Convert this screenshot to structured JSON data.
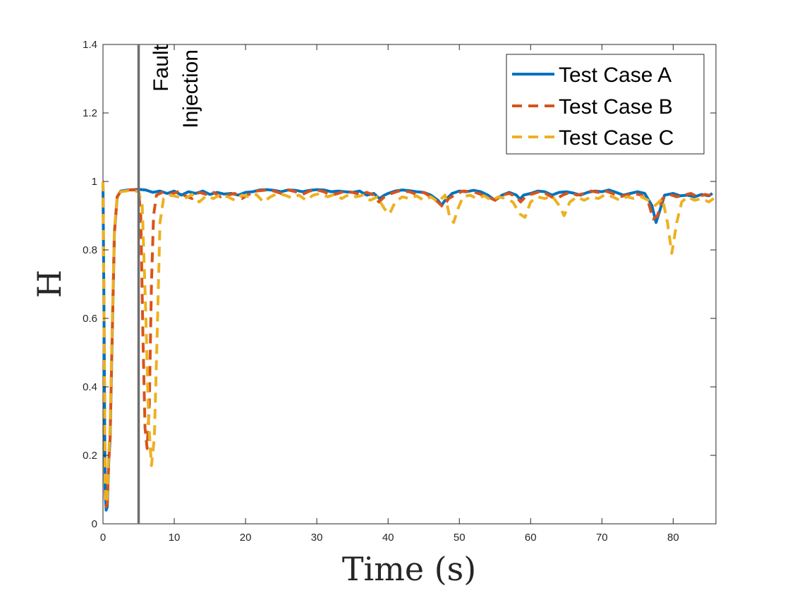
{
  "chart_data": {
    "type": "line",
    "title": "",
    "xlabel": "Time (s)",
    "ylabel": "H",
    "xlim": [
      0,
      86
    ],
    "ylim": [
      0,
      1.4
    ],
    "xticks": [
      0,
      10,
      20,
      30,
      40,
      50,
      60,
      70,
      80
    ],
    "yticks": [
      0,
      0.2,
      0.4,
      0.6,
      0.8,
      1,
      1.2,
      1.4
    ],
    "xtick_labels": [
      "0",
      "10",
      "20",
      "30",
      "40",
      "50",
      "60",
      "70",
      "80"
    ],
    "ytick_labels": [
      "0",
      "0.2",
      "0.4",
      "0.6",
      "0.8",
      "1",
      "1.2",
      "1.4"
    ],
    "grid": false,
    "legend_position": "top-right",
    "annotation": {
      "text_line1": "Fault",
      "text_line2": "Injection",
      "x": 5
    },
    "colors": {
      "axis": "#262626",
      "fault_line": "#6e6e6e"
    },
    "series": [
      {
        "name": "Test Case A",
        "style": "solid",
        "color": "#0072BD",
        "points": [
          [
            0,
            1.0
          ],
          [
            0.15,
            0.6
          ],
          [
            0.3,
            0.1
          ],
          [
            0.45,
            0.04
          ],
          [
            0.6,
            0.05
          ],
          [
            0.8,
            0.18
          ],
          [
            1.0,
            0.25
          ],
          [
            1.3,
            0.55
          ],
          [
            1.6,
            0.85
          ],
          [
            2.0,
            0.955
          ],
          [
            2.5,
            0.972
          ],
          [
            3.5,
            0.975
          ],
          [
            5,
            0.977
          ],
          [
            6,
            0.975
          ],
          [
            7,
            0.968
          ],
          [
            8,
            0.972
          ],
          [
            9,
            0.965
          ],
          [
            10,
            0.972
          ],
          [
            11,
            0.96
          ],
          [
            12,
            0.97
          ],
          [
            13,
            0.965
          ],
          [
            14,
            0.972
          ],
          [
            15,
            0.962
          ],
          [
            16,
            0.968
          ],
          [
            17,
            0.963
          ],
          [
            18,
            0.965
          ],
          [
            19,
            0.96
          ],
          [
            20,
            0.968
          ],
          [
            21,
            0.97
          ],
          [
            22,
            0.975
          ],
          [
            23,
            0.976
          ],
          [
            24,
            0.974
          ],
          [
            25,
            0.97
          ],
          [
            26,
            0.975
          ],
          [
            27,
            0.974
          ],
          [
            28,
            0.97
          ],
          [
            29,
            0.974
          ],
          [
            30,
            0.976
          ],
          [
            31,
            0.975
          ],
          [
            32,
            0.97
          ],
          [
            33,
            0.972
          ],
          [
            34,
            0.97
          ],
          [
            35,
            0.968
          ],
          [
            36,
            0.972
          ],
          [
            37,
            0.96
          ],
          [
            38,
            0.965
          ],
          [
            38.8,
            0.95
          ],
          [
            39.5,
            0.96
          ],
          [
            40,
            0.965
          ],
          [
            41,
            0.972
          ],
          [
            42,
            0.975
          ],
          [
            43,
            0.973
          ],
          [
            44,
            0.97
          ],
          [
            45,
            0.968
          ],
          [
            46,
            0.96
          ],
          [
            47,
            0.945
          ],
          [
            47.5,
            0.93
          ],
          [
            48,
            0.945
          ],
          [
            49,
            0.965
          ],
          [
            50,
            0.972
          ],
          [
            51,
            0.97
          ],
          [
            52,
            0.974
          ],
          [
            53,
            0.97
          ],
          [
            54,
            0.96
          ],
          [
            55,
            0.945
          ],
          [
            56,
            0.96
          ],
          [
            57,
            0.968
          ],
          [
            58,
            0.96
          ],
          [
            58.5,
            0.948
          ],
          [
            59,
            0.96
          ],
          [
            60,
            0.965
          ],
          [
            61,
            0.972
          ],
          [
            62,
            0.97
          ],
          [
            63,
            0.96
          ],
          [
            64,
            0.968
          ],
          [
            65,
            0.97
          ],
          [
            66,
            0.966
          ],
          [
            67,
            0.96
          ],
          [
            68,
            0.968
          ],
          [
            69,
            0.972
          ],
          [
            70,
            0.97
          ],
          [
            71,
            0.975
          ],
          [
            72,
            0.968
          ],
          [
            73,
            0.96
          ],
          [
            74,
            0.965
          ],
          [
            75,
            0.97
          ],
          [
            76,
            0.965
          ],
          [
            77,
            0.93
          ],
          [
            77.6,
            0.88
          ],
          [
            78.2,
            0.92
          ],
          [
            78.8,
            0.96
          ],
          [
            80,
            0.965
          ],
          [
            81,
            0.958
          ],
          [
            82,
            0.96
          ],
          [
            83,
            0.955
          ],
          [
            84,
            0.962
          ],
          [
            85,
            0.958
          ],
          [
            85.5,
            0.965
          ]
        ]
      },
      {
        "name": "Test Case B",
        "style": "dashed",
        "color": "#D95319",
        "points": [
          [
            0,
            1.0
          ],
          [
            0.15,
            0.6
          ],
          [
            0.3,
            0.1
          ],
          [
            0.45,
            0.05
          ],
          [
            0.6,
            0.06
          ],
          [
            0.8,
            0.18
          ],
          [
            1.0,
            0.25
          ],
          [
            1.3,
            0.55
          ],
          [
            1.6,
            0.85
          ],
          [
            2.0,
            0.955
          ],
          [
            2.5,
            0.972
          ],
          [
            3.5,
            0.975
          ],
          [
            4.5,
            0.975
          ],
          [
            5.0,
            0.97
          ],
          [
            5.3,
            0.9
          ],
          [
            5.6,
            0.55
          ],
          [
            5.9,
            0.28
          ],
          [
            6.2,
            0.22
          ],
          [
            6.5,
            0.35
          ],
          [
            6.8,
            0.7
          ],
          [
            7.1,
            0.9
          ],
          [
            7.5,
            0.96
          ],
          [
            8.5,
            0.97
          ],
          [
            9.5,
            0.962
          ],
          [
            10.5,
            0.97
          ],
          [
            11.5,
            0.958
          ],
          [
            12.5,
            0.95
          ],
          [
            13.5,
            0.968
          ],
          [
            14.5,
            0.962
          ],
          [
            15.5,
            0.968
          ],
          [
            16.5,
            0.955
          ],
          [
            17.5,
            0.96
          ],
          [
            18.5,
            0.965
          ],
          [
            19.5,
            0.95
          ],
          [
            20.5,
            0.962
          ],
          [
            21.5,
            0.972
          ],
          [
            23,
            0.975
          ],
          [
            24,
            0.972
          ],
          [
            25,
            0.965
          ],
          [
            26,
            0.975
          ],
          [
            27,
            0.97
          ],
          [
            28,
            0.962
          ],
          [
            29,
            0.972
          ],
          [
            30,
            0.975
          ],
          [
            31,
            0.97
          ],
          [
            32,
            0.96
          ],
          [
            33,
            0.965
          ],
          [
            34,
            0.972
          ],
          [
            35,
            0.968
          ],
          [
            36,
            0.962
          ],
          [
            37,
            0.968
          ],
          [
            38,
            0.96
          ],
          [
            38.7,
            0.94
          ],
          [
            39.5,
            0.955
          ],
          [
            40.5,
            0.965
          ],
          [
            41.5,
            0.972
          ],
          [
            43,
            0.97
          ],
          [
            44,
            0.962
          ],
          [
            45,
            0.968
          ],
          [
            46,
            0.955
          ],
          [
            47,
            0.94
          ],
          [
            47.7,
            0.925
          ],
          [
            48.5,
            0.95
          ],
          [
            49.5,
            0.962
          ],
          [
            50.5,
            0.972
          ],
          [
            52,
            0.97
          ],
          [
            53,
            0.962
          ],
          [
            54,
            0.955
          ],
          [
            55,
            0.945
          ],
          [
            56,
            0.96
          ],
          [
            57,
            0.965
          ],
          [
            58,
            0.955
          ],
          [
            58.6,
            0.94
          ],
          [
            59.5,
            0.96
          ],
          [
            60.5,
            0.965
          ],
          [
            61.5,
            0.972
          ],
          [
            62.5,
            0.96
          ],
          [
            63.5,
            0.948
          ],
          [
            64.5,
            0.96
          ],
          [
            65.5,
            0.968
          ],
          [
            66.5,
            0.96
          ],
          [
            67.5,
            0.965
          ],
          [
            68.5,
            0.972
          ],
          [
            69.5,
            0.968
          ],
          [
            70.5,
            0.972
          ],
          [
            71.5,
            0.965
          ],
          [
            72.5,
            0.955
          ],
          [
            73.5,
            0.96
          ],
          [
            74.5,
            0.965
          ],
          [
            75.5,
            0.96
          ],
          [
            76.5,
            0.94
          ],
          [
            77.2,
            0.89
          ],
          [
            77.8,
            0.9
          ],
          [
            78.5,
            0.95
          ],
          [
            79.5,
            0.962
          ],
          [
            80.5,
            0.955
          ],
          [
            81.5,
            0.96
          ],
          [
            82.5,
            0.965
          ],
          [
            83.5,
            0.955
          ],
          [
            84.5,
            0.962
          ],
          [
            85.5,
            0.958
          ]
        ]
      },
      {
        "name": "Test Case C",
        "style": "dashed",
        "color": "#EDB120",
        "points": [
          [
            0,
            1.0
          ],
          [
            0.15,
            0.62
          ],
          [
            0.3,
            0.12
          ],
          [
            0.45,
            0.06
          ],
          [
            0.6,
            0.08
          ],
          [
            0.8,
            0.2
          ],
          [
            1.0,
            0.28
          ],
          [
            1.3,
            0.58
          ],
          [
            1.6,
            0.86
          ],
          [
            2.0,
            0.955
          ],
          [
            2.5,
            0.97
          ],
          [
            3.5,
            0.973
          ],
          [
            4.5,
            0.972
          ],
          [
            5.0,
            0.97
          ],
          [
            5.5,
            0.93
          ],
          [
            6.0,
            0.62
          ],
          [
            6.4,
            0.3
          ],
          [
            6.8,
            0.17
          ],
          [
            7.2,
            0.25
          ],
          [
            7.6,
            0.55
          ],
          [
            8.0,
            0.88
          ],
          [
            8.5,
            0.95
          ],
          [
            9.5,
            0.96
          ],
          [
            10.5,
            0.955
          ],
          [
            11.5,
            0.95
          ],
          [
            12.5,
            0.962
          ],
          [
            13.5,
            0.94
          ],
          [
            14.5,
            0.958
          ],
          [
            15.5,
            0.95
          ],
          [
            16.5,
            0.962
          ],
          [
            17.5,
            0.955
          ],
          [
            18.5,
            0.945
          ],
          [
            19.5,
            0.96
          ],
          [
            20.5,
            0.955
          ],
          [
            21.5,
            0.962
          ],
          [
            22.5,
            0.94
          ],
          [
            23.5,
            0.955
          ],
          [
            24.5,
            0.965
          ],
          [
            25.5,
            0.96
          ],
          [
            26.5,
            0.952
          ],
          [
            27.5,
            0.96
          ],
          [
            28.5,
            0.945
          ],
          [
            29.5,
            0.96
          ],
          [
            30.5,
            0.965
          ],
          [
            31.5,
            0.955
          ],
          [
            32.5,
            0.962
          ],
          [
            33.5,
            0.95
          ],
          [
            34.5,
            0.962
          ],
          [
            35.5,
            0.955
          ],
          [
            36.5,
            0.96
          ],
          [
            37.5,
            0.945
          ],
          [
            38.5,
            0.955
          ],
          [
            39.5,
            0.92
          ],
          [
            40.2,
            0.905
          ],
          [
            41,
            0.94
          ],
          [
            42,
            0.955
          ],
          [
            43,
            0.95
          ],
          [
            44,
            0.958
          ],
          [
            45,
            0.945
          ],
          [
            46,
            0.955
          ],
          [
            47,
            0.94
          ],
          [
            48,
            0.96
          ],
          [
            48.6,
            0.9
          ],
          [
            49.2,
            0.88
          ],
          [
            49.8,
            0.92
          ],
          [
            50.5,
            0.955
          ],
          [
            51.5,
            0.96
          ],
          [
            52.5,
            0.95
          ],
          [
            53.5,
            0.958
          ],
          [
            54.5,
            0.945
          ],
          [
            55.5,
            0.955
          ],
          [
            56.5,
            0.95
          ],
          [
            57.5,
            0.94
          ],
          [
            58.5,
            0.905
          ],
          [
            59.2,
            0.895
          ],
          [
            60,
            0.94
          ],
          [
            61,
            0.955
          ],
          [
            62,
            0.95
          ],
          [
            63,
            0.958
          ],
          [
            64,
            0.93
          ],
          [
            64.7,
            0.9
          ],
          [
            65.5,
            0.94
          ],
          [
            66.5,
            0.955
          ],
          [
            67.5,
            0.945
          ],
          [
            68.5,
            0.955
          ],
          [
            69.5,
            0.95
          ],
          [
            70.5,
            0.962
          ],
          [
            71.5,
            0.955
          ],
          [
            72.5,
            0.945
          ],
          [
            73.5,
            0.955
          ],
          [
            74.5,
            0.95
          ],
          [
            75.5,
            0.955
          ],
          [
            76.5,
            0.945
          ],
          [
            77.5,
            0.93
          ],
          [
            78.5,
            0.95
          ],
          [
            79.2,
            0.88
          ],
          [
            79.8,
            0.79
          ],
          [
            80.5,
            0.88
          ],
          [
            81.2,
            0.94
          ],
          [
            82,
            0.955
          ],
          [
            83,
            0.945
          ],
          [
            84,
            0.95
          ],
          [
            85,
            0.94
          ],
          [
            86,
            0.955
          ]
        ]
      }
    ]
  }
}
